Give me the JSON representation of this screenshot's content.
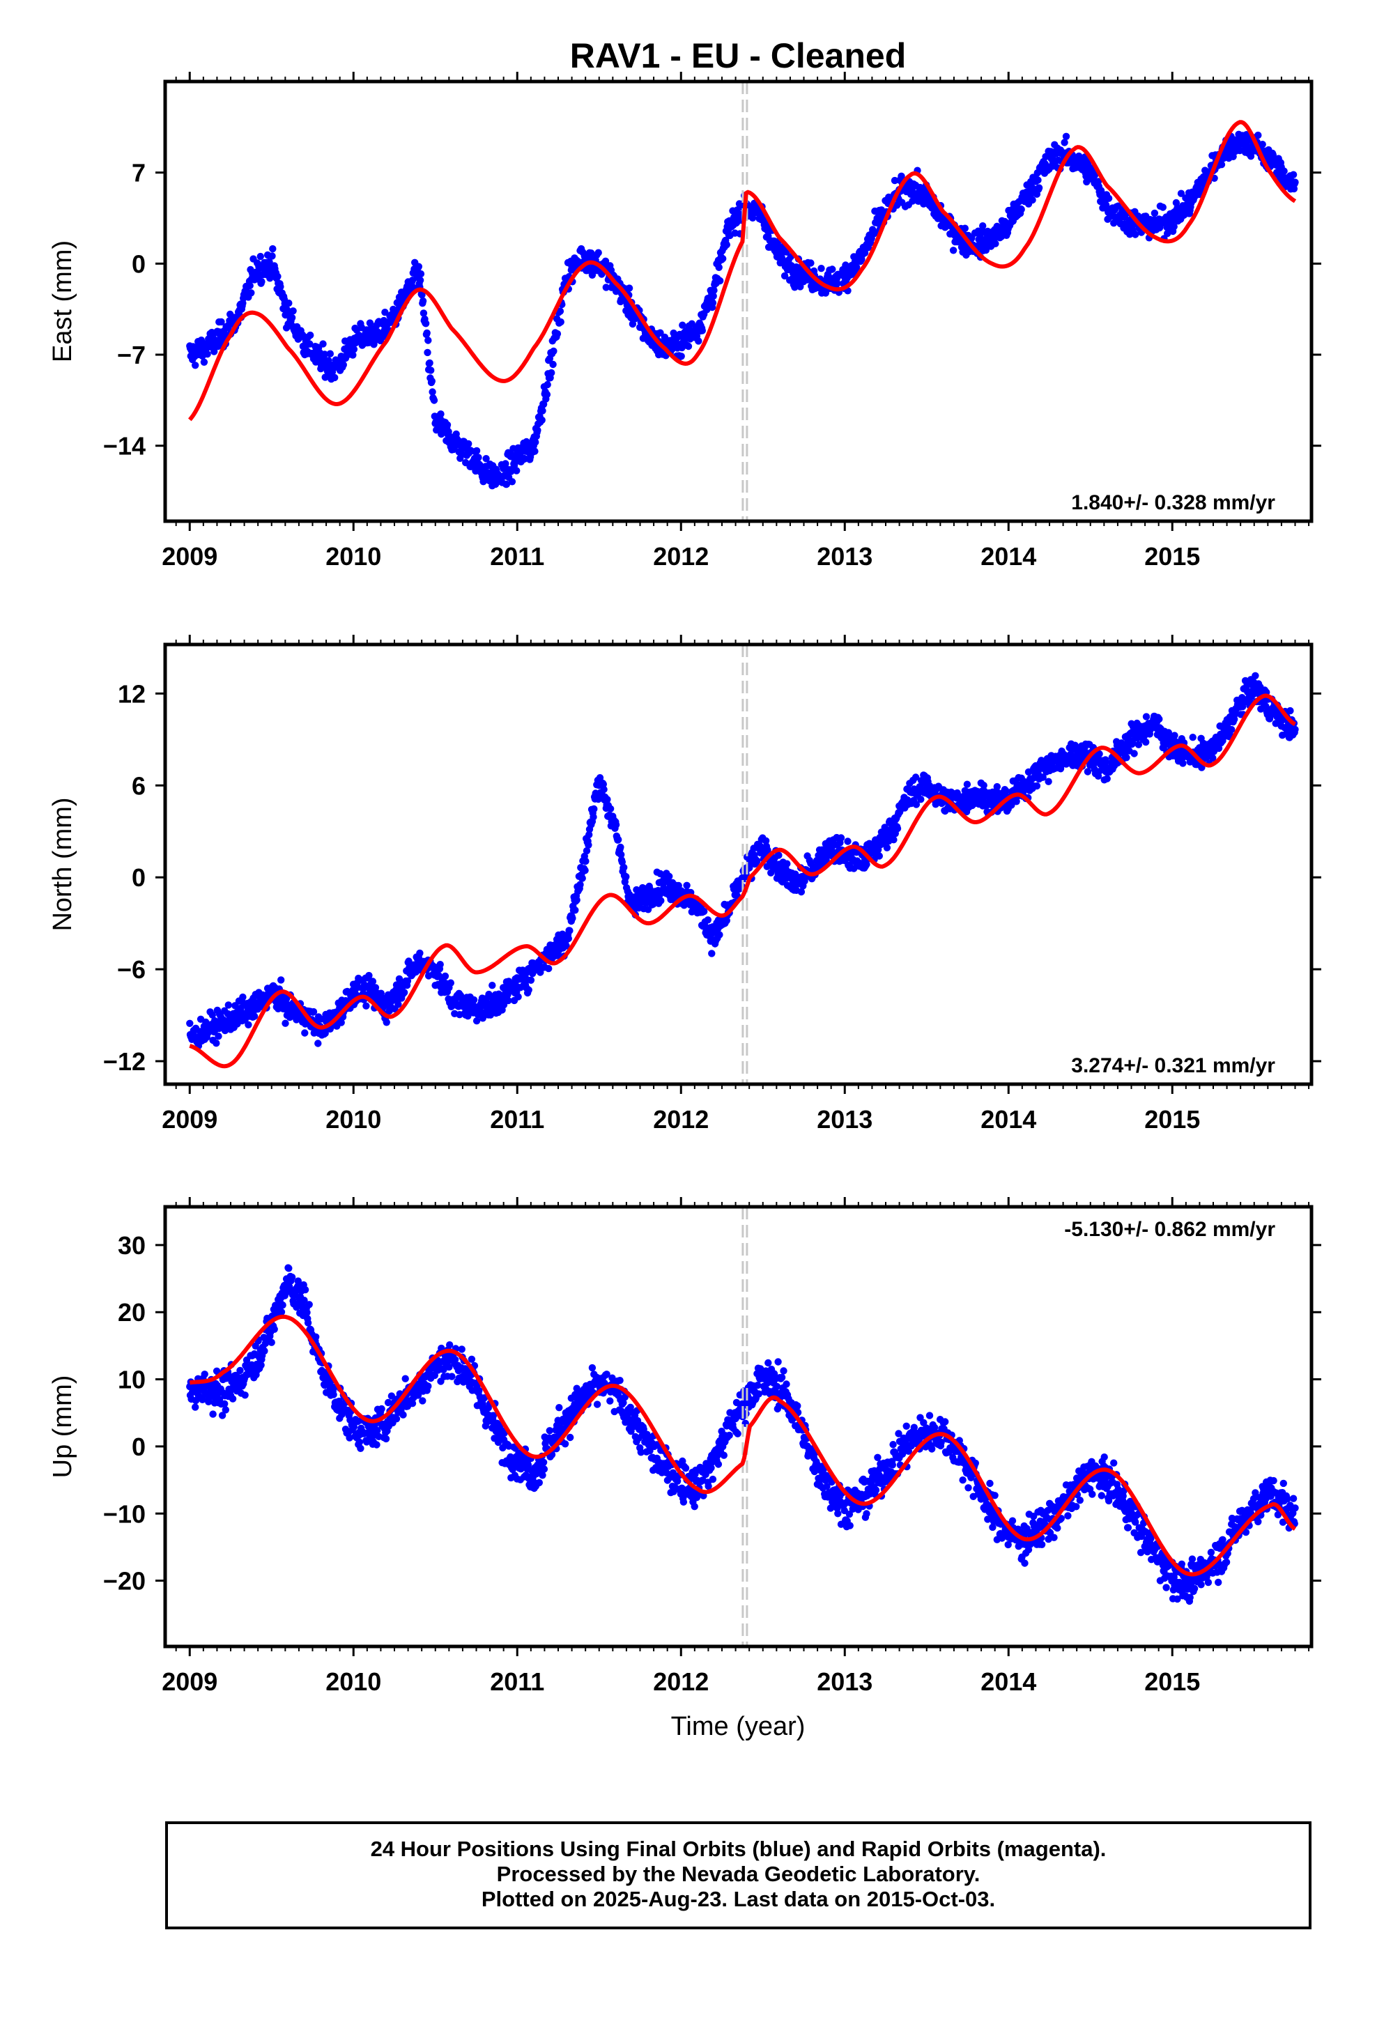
{
  "title": "RAV1  - EU - Cleaned",
  "xlabel": "Time (year)",
  "footer": {
    "line1": "24 Hour Positions Using Final Orbits (blue) and Rapid Orbits (magenta).",
    "line2": "Processed by the Nevada Geodetic Laboratory.",
    "line3": "Plotted on 2025-Aug-23. Last data on 2015-Oct-03."
  },
  "colors": {
    "observations": "#0000ff",
    "model": "#ff0000",
    "offset_line": "#c8c8c8",
    "axes": "#000000"
  },
  "chart_data": [
    {
      "type": "scatter",
      "component": "East",
      "ylabel": "East (mm)",
      "rate_label": "1.840+/- 0.328 mm/yr",
      "xlim": [
        2008.85,
        2015.85
      ],
      "ylim": [
        -19.8,
        14.0
      ],
      "xticks": [
        "2009",
        "2010",
        "2011",
        "2012",
        "2013",
        "2014",
        "2015"
      ],
      "yticks": [
        "-14",
        "-7",
        "0",
        "7"
      ],
      "offset_epoch": 2012.39,
      "data_range": [
        2009.0,
        2015.75
      ],
      "series": [
        {
          "kind": "observations",
          "x": [
            2009.0,
            2009.1,
            2009.2,
            2009.3,
            2009.4,
            2009.5,
            2009.6,
            2009.7,
            2009.8,
            2009.9,
            2010.0,
            2010.1,
            2010.2,
            2010.3,
            2010.4,
            2010.5,
            2010.6,
            2010.7,
            2010.8,
            2010.9,
            2011.0,
            2011.1,
            2011.2,
            2011.3,
            2011.4,
            2011.5,
            2011.6,
            2011.7,
            2011.8,
            2011.9,
            2012.0,
            2012.1,
            2012.2,
            2012.3,
            2012.4,
            2012.5,
            2012.6,
            2012.7,
            2012.8,
            2012.9,
            2013.0,
            2013.1,
            2013.2,
            2013.3,
            2013.4,
            2013.5,
            2013.6,
            2013.7,
            2013.8,
            2013.9,
            2014.0,
            2014.1,
            2014.2,
            2014.3,
            2014.4,
            2014.5,
            2014.6,
            2014.7,
            2014.8,
            2014.9,
            2015.0,
            2015.1,
            2015.2,
            2015.3,
            2015.4,
            2015.5,
            2015.6,
            2015.7,
            2015.75
          ],
          "y": [
            -7.0,
            -6.5,
            -5.5,
            -4.0,
            -0.5,
            0.0,
            -4.0,
            -6.0,
            -7.5,
            -8.0,
            -6.0,
            -5.5,
            -5.0,
            -3.0,
            -0.5,
            -12.0,
            -13.5,
            -14.5,
            -16.0,
            -16.5,
            -15.0,
            -14.0,
            -8.0,
            -1.0,
            0.5,
            0.0,
            -1.5,
            -3.5,
            -5.5,
            -6.5,
            -6.0,
            -5.0,
            -2.0,
            3.0,
            4.5,
            3.5,
            0.5,
            -0.5,
            -1.0,
            -1.5,
            -1.0,
            0.5,
            3.0,
            5.0,
            6.0,
            5.0,
            3.5,
            2.0,
            1.5,
            2.0,
            3.0,
            5.0,
            7.0,
            8.5,
            8.0,
            7.0,
            4.5,
            3.5,
            3.0,
            3.0,
            3.5,
            4.5,
            6.5,
            8.5,
            9.5,
            9.0,
            8.0,
            6.5,
            6.0
          ]
        },
        {
          "kind": "model",
          "x": [
            2009.0,
            2009.25,
            2009.4,
            2009.6,
            2009.9,
            2010.2,
            2010.4,
            2010.6,
            2010.9,
            2011.1,
            2011.4,
            2011.6,
            2011.9,
            2012.1,
            2012.38,
            2012.4,
            2012.6,
            2012.9,
            2013.1,
            2013.4,
            2013.6,
            2013.9,
            2014.1,
            2014.4,
            2014.6,
            2014.9,
            2015.1,
            2015.4,
            2015.6,
            2015.75
          ],
          "y": [
            -12.0,
            -5.5,
            -3.8,
            -6.5,
            -10.8,
            -6.0,
            -2.0,
            -5.0,
            -9.0,
            -6.5,
            -0.2,
            -1.5,
            -6.5,
            -7.0,
            1.8,
            5.5,
            2.0,
            -1.8,
            -0.5,
            6.8,
            4.0,
            0.0,
            1.2,
            8.8,
            6.0,
            2.0,
            3.0,
            10.8,
            7.0,
            4.8
          ]
        }
      ]
    },
    {
      "type": "scatter",
      "component": "North",
      "ylabel": "North (mm)",
      "rate_label": "3.274+/- 0.321 mm/yr",
      "xlim": [
        2008.85,
        2015.85
      ],
      "ylim": [
        -13.5,
        15.2
      ],
      "xticks": [
        "2009",
        "2010",
        "2011",
        "2012",
        "2013",
        "2014",
        "2015"
      ],
      "yticks": [
        "-12",
        "-6",
        "0",
        "6",
        "12"
      ],
      "offset_epoch": 2012.39,
      "data_range": [
        2009.0,
        2015.75
      ],
      "series": [
        {
          "kind": "observations",
          "x": [
            2009.0,
            2009.1,
            2009.2,
            2009.3,
            2009.4,
            2009.5,
            2009.6,
            2009.7,
            2009.8,
            2009.9,
            2010.0,
            2010.1,
            2010.2,
            2010.3,
            2010.4,
            2010.5,
            2010.6,
            2010.7,
            2010.8,
            2010.9,
            2011.0,
            2011.1,
            2011.2,
            2011.3,
            2011.4,
            2011.5,
            2011.6,
            2011.7,
            2011.8,
            2011.9,
            2012.0,
            2012.1,
            2012.2,
            2012.3,
            2012.4,
            2012.5,
            2012.6,
            2012.7,
            2012.8,
            2012.9,
            2013.0,
            2013.1,
            2013.2,
            2013.3,
            2013.4,
            2013.5,
            2013.6,
            2013.7,
            2013.8,
            2013.9,
            2014.0,
            2014.1,
            2014.2,
            2014.3,
            2014.4,
            2014.5,
            2014.6,
            2014.7,
            2014.8,
            2014.9,
            2015.0,
            2015.1,
            2015.2,
            2015.3,
            2015.4,
            2015.5,
            2015.6,
            2015.7,
            2015.75
          ],
          "y": [
            -10.5,
            -10.0,
            -9.5,
            -9.0,
            -8.5,
            -7.5,
            -8.5,
            -9.0,
            -10.0,
            -9.0,
            -7.5,
            -7.5,
            -8.5,
            -7.0,
            -5.5,
            -6.0,
            -8.0,
            -8.5,
            -8.5,
            -8.0,
            -7.0,
            -6.0,
            -5.0,
            -4.0,
            0.5,
            6.5,
            3.0,
            -2.0,
            -1.0,
            -0.5,
            -1.0,
            -2.0,
            -4.0,
            -2.0,
            0.5,
            2.0,
            0.5,
            -0.5,
            0.5,
            2.0,
            1.5,
            1.0,
            2.0,
            3.5,
            5.5,
            6.0,
            5.0,
            5.0,
            5.5,
            5.0,
            5.0,
            6.0,
            7.0,
            7.5,
            8.0,
            8.0,
            7.0,
            8.5,
            9.5,
            10.0,
            8.5,
            8.0,
            8.0,
            9.0,
            11.0,
            12.5,
            11.0,
            10.0,
            9.5
          ]
        },
        {
          "kind": "model",
          "x": [
            2009.0,
            2009.25,
            2009.55,
            2009.8,
            2010.05,
            2010.25,
            2010.55,
            2010.75,
            2011.05,
            2011.25,
            2011.55,
            2011.8,
            2012.05,
            2012.25,
            2012.38,
            2012.42,
            2012.6,
            2012.8,
            2013.05,
            2013.25,
            2013.55,
            2013.8,
            2014.05,
            2014.25,
            2014.55,
            2014.8,
            2015.05,
            2015.25,
            2015.55,
            2015.75
          ],
          "y": [
            -11.0,
            -12.2,
            -7.5,
            -9.8,
            -7.8,
            -9.0,
            -4.5,
            -6.2,
            -4.5,
            -5.5,
            -1.2,
            -3.0,
            -1.2,
            -2.5,
            -1.2,
            0.0,
            1.8,
            0.2,
            2.0,
            0.8,
            5.2,
            3.6,
            5.4,
            4.2,
            8.4,
            6.8,
            8.6,
            7.4,
            11.8,
            10.0
          ]
        }
      ]
    },
    {
      "type": "scatter",
      "component": "Up",
      "ylabel": "Up (mm)",
      "rate_label": "-5.130+/- 0.862 mm/yr",
      "xlim": [
        2008.85,
        2015.85
      ],
      "ylim": [
        -29.8,
        35.7
      ],
      "xticks": [
        "2009",
        "2010",
        "2011",
        "2012",
        "2013",
        "2014",
        "2015"
      ],
      "yticks": [
        "-20",
        "-10",
        "0",
        "10",
        "20",
        "30"
      ],
      "offset_epoch": 2012.39,
      "data_range": [
        2009.0,
        2015.75
      ],
      "series": [
        {
          "kind": "observations",
          "x": [
            2009.0,
            2009.1,
            2009.2,
            2009.3,
            2009.4,
            2009.5,
            2009.6,
            2009.7,
            2009.8,
            2009.9,
            2010.0,
            2010.1,
            2010.2,
            2010.3,
            2010.4,
            2010.5,
            2010.6,
            2010.7,
            2010.8,
            2010.9,
            2011.0,
            2011.1,
            2011.2,
            2011.3,
            2011.4,
            2011.5,
            2011.6,
            2011.7,
            2011.8,
            2011.9,
            2012.0,
            2012.1,
            2012.2,
            2012.3,
            2012.4,
            2012.5,
            2012.6,
            2012.7,
            2012.8,
            2012.9,
            2013.0,
            2013.1,
            2013.2,
            2013.3,
            2013.4,
            2013.5,
            2013.6,
            2013.7,
            2013.8,
            2013.9,
            2014.0,
            2014.1,
            2014.2,
            2014.3,
            2014.4,
            2014.5,
            2014.6,
            2014.7,
            2014.8,
            2014.9,
            2015.0,
            2015.1,
            2015.2,
            2015.3,
            2015.4,
            2015.5,
            2015.6,
            2015.7,
            2015.75
          ],
          "y": [
            8.0,
            9.0,
            8.0,
            9.5,
            13.0,
            18.0,
            25.0,
            21.0,
            12.0,
            7.0,
            3.0,
            2.0,
            4.0,
            7.0,
            9.0,
            12.0,
            13.0,
            11.0,
            6.0,
            1.0,
            -2.0,
            -4.0,
            0.0,
            4.0,
            7.0,
            9.0,
            8.0,
            4.0,
            0.0,
            -3.0,
            -5.0,
            -6.0,
            -2.0,
            3.0,
            7.0,
            10.0,
            9.0,
            5.0,
            -2.0,
            -6.0,
            -9.0,
            -8.0,
            -5.0,
            -2.0,
            1.0,
            2.0,
            2.0,
            -1.0,
            -5.0,
            -10.0,
            -13.0,
            -14.0,
            -12.0,
            -10.0,
            -7.0,
            -4.0,
            -5.0,
            -8.0,
            -12.0,
            -16.0,
            -19.0,
            -21.0,
            -18.0,
            -16.0,
            -12.0,
            -9.0,
            -7.0,
            -9.0,
            -11.0
          ]
        },
        {
          "kind": "model",
          "x": [
            2009.0,
            2009.2,
            2009.6,
            2010.1,
            2010.6,
            2011.1,
            2011.6,
            2012.1,
            2012.38,
            2012.42,
            2012.6,
            2013.1,
            2013.6,
            2014.1,
            2014.6,
            2015.1,
            2015.6,
            2015.75
          ],
          "y": [
            9.5,
            11.0,
            19.2,
            3.8,
            14.2,
            -1.5,
            9.0,
            -6.3,
            -2.5,
            3.0,
            6.8,
            -8.5,
            1.8,
            -13.8,
            -3.5,
            -19.0,
            -8.8,
            -12.3
          ]
        }
      ]
    }
  ]
}
